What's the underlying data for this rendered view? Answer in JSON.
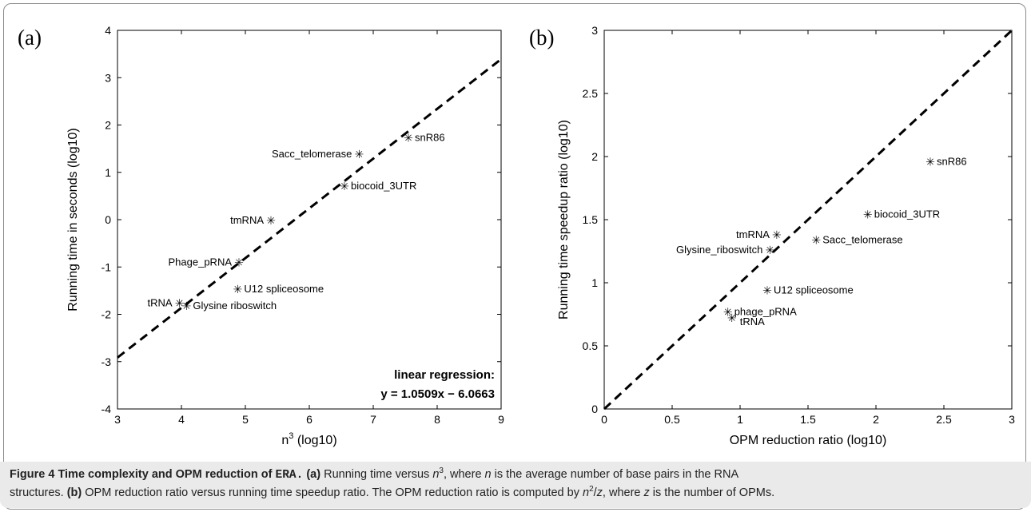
{
  "colors": {
    "frame": "#8c8c8c",
    "caption_bg": "#eaeaea",
    "ink": "#000000"
  },
  "caption": {
    "figure_label": "Figure 4",
    "title": "Time complexity and OPM reduction of",
    "title_code": "ERA.",
    "part_a_tag": "(a)",
    "part_a_text_1": "Running time versus",
    "n_sym": "n",
    "n_exp": "3",
    "part_a_text_2": ", where",
    "part_a_text_3": "is the average number of base pairs in the RNA",
    "part_a_text_4": "structures.",
    "part_b_tag": "(b)",
    "part_b_text_1": "OPM reduction ratio versus running time speedup ratio. The OPM reduction ratio is computed by",
    "n_sq_exp": "2",
    "slash": "/",
    "z_sym": "z",
    "part_b_text_2": ", where",
    "part_b_text_3": "is the number of OPMs."
  },
  "chart_data": [
    {
      "panel_tag": "(a)",
      "type": "scatter",
      "xlabel_base": "n",
      "xlabel_exp": "3",
      "xlabel_suffix": "(log10)",
      "ylabel": "Running time in seconds (log10)",
      "xlim": [
        3,
        9
      ],
      "ylim": [
        -4,
        4
      ],
      "xticks": [
        3,
        4,
        5,
        6,
        7,
        8,
        9
      ],
      "yticks": [
        -4,
        -3,
        -2,
        -1,
        0,
        1,
        2,
        3,
        4
      ],
      "points": [
        {
          "label": "snR86",
          "x": 7.55,
          "y": 1.73,
          "anchor": "right"
        },
        {
          "label": "Sacc_telomerase",
          "x": 6.78,
          "y": 1.38,
          "anchor": "left"
        },
        {
          "label": "biocoid_3UTR",
          "x": 6.55,
          "y": 0.71,
          "anchor": "right"
        },
        {
          "label": "tmRNA",
          "x": 5.4,
          "y": -0.02,
          "anchor": "left"
        },
        {
          "label": "Phage_pRNA",
          "x": 4.9,
          "y": -0.9,
          "anchor": "left"
        },
        {
          "label": "U12 spliceosome",
          "x": 4.88,
          "y": -1.47,
          "anchor": "right"
        },
        {
          "label": "tRNA",
          "x": 3.97,
          "y": -1.76,
          "anchor": "left"
        },
        {
          "label": "Glysine riboswitch",
          "x": 4.08,
          "y": -1.82,
          "anchor": "right"
        }
      ],
      "regression": {
        "slope": 1.0509,
        "intercept": -6.0663,
        "style": "dashed"
      },
      "annotation_line1": "linear regression:",
      "annotation_line2": "y = 1.0509x − 6.0663"
    },
    {
      "panel_tag": "(b)",
      "type": "scatter",
      "xlabel": "OPM reduction ratio (log10)",
      "ylabel": "Running time speedup ratio (log10)",
      "xlim": [
        0,
        3
      ],
      "ylim": [
        0,
        3
      ],
      "xticks": [
        "0",
        "0.5",
        "1",
        "1.5",
        "2",
        "2.5",
        "3"
      ],
      "yticks": [
        "0",
        "0.5",
        "1",
        "1.5",
        "2",
        "2.5",
        "3"
      ],
      "points": [
        {
          "label": "snR86",
          "x": 2.4,
          "y": 1.96,
          "anchor": "right"
        },
        {
          "label": "biocoid_3UTR",
          "x": 1.94,
          "y": 1.54,
          "anchor": "right"
        },
        {
          "label": "tmRNA",
          "x": 1.27,
          "y": 1.38,
          "anchor": "left"
        },
        {
          "label": "Glysine_riboswitch",
          "x": 1.22,
          "y": 1.26,
          "anchor": "left"
        },
        {
          "label": "Sacc_telomerase",
          "x": 1.56,
          "y": 1.34,
          "anchor": "right"
        },
        {
          "label": "U12 spliceosome",
          "x": 1.2,
          "y": 0.94,
          "anchor": "right"
        },
        {
          "label": "phage_pRNA",
          "x": 0.91,
          "y": 0.77,
          "anchor": "right"
        },
        {
          "label": "tRNA",
          "x": 0.94,
          "y": 0.72,
          "anchor": "rightlow"
        }
      ],
      "diagonal": {
        "from": [
          0,
          0
        ],
        "to": [
          3,
          3
        ],
        "style": "dashed"
      }
    }
  ]
}
